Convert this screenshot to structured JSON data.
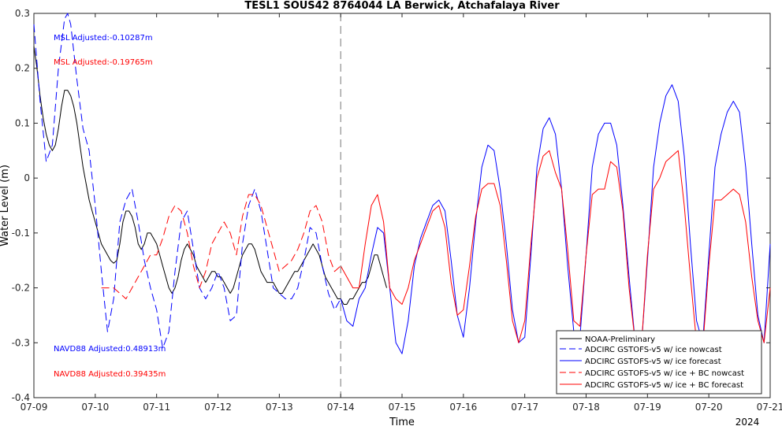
{
  "chart_data": {
    "type": "line",
    "title": "TESL1 SOUS42 8764044 LA Berwick, Atchafalaya River",
    "xlabel": "Time",
    "ylabel": "Water Level (m)",
    "year_label": "2024",
    "x_unit": "day_of_month_july_2024",
    "xlim": [
      9,
      21
    ],
    "ylim": [
      -0.4,
      0.3
    ],
    "xticks": [
      {
        "value": 9,
        "label": "07-09"
      },
      {
        "value": 10,
        "label": "07-10"
      },
      {
        "value": 11,
        "label": "07-11"
      },
      {
        "value": 12,
        "label": "07-12"
      },
      {
        "value": 13,
        "label": "07-13"
      },
      {
        "value": 14,
        "label": "07-14"
      },
      {
        "value": 15,
        "label": "07-15"
      },
      {
        "value": 16,
        "label": "07-16"
      },
      {
        "value": 17,
        "label": "07-17"
      },
      {
        "value": 18,
        "label": "07-18"
      },
      {
        "value": 19,
        "label": "07-19"
      },
      {
        "value": 20,
        "label": "07-20"
      },
      {
        "value": 21,
        "label": "07-21"
      }
    ],
    "yticks": [
      {
        "value": 0.3,
        "label": "0.3"
      },
      {
        "value": 0.2,
        "label": "0.2"
      },
      {
        "value": 0.1,
        "label": "0.1"
      },
      {
        "value": 0,
        "label": "0"
      },
      {
        "value": -0.1,
        "label": "-0.1"
      },
      {
        "value": -0.2,
        "label": "-0.2"
      },
      {
        "value": -0.3,
        "label": "-0.3"
      },
      {
        "value": -0.4,
        "label": "-0.4"
      }
    ],
    "nowcast_forecast_divider_x": 14,
    "grid": false,
    "legend_position": "bottom-right",
    "annotations": [
      {
        "text": "MSL Adjusted:-0.10287m",
        "color": "#0000ff"
      },
      {
        "text": "MSL Adjusted:-0.19765m",
        "color": "#ff0000"
      },
      {
        "text": "NAVD88 Adjusted:0.48913m",
        "color": "#0000ff"
      },
      {
        "text": "NAVD88 Adjusted:0.39435m",
        "color": "#ff0000"
      }
    ],
    "series": [
      {
        "name": "NOAA-Preliminary",
        "color": "#000000",
        "dash": "solid",
        "x": [
          9.0,
          9.05,
          9.1,
          9.15,
          9.2,
          9.25,
          9.3,
          9.35,
          9.4,
          9.45,
          9.5,
          9.55,
          9.6,
          9.65,
          9.7,
          9.75,
          9.8,
          9.85,
          9.9,
          9.95,
          10.0,
          10.05,
          10.1,
          10.15,
          10.2,
          10.25,
          10.3,
          10.35,
          10.4,
          10.45,
          10.5,
          10.55,
          10.6,
          10.65,
          10.7,
          10.75,
          10.8,
          10.85,
          10.9,
          10.95,
          11.0,
          11.05,
          11.1,
          11.15,
          11.2,
          11.25,
          11.3,
          11.35,
          11.4,
          11.45,
          11.5,
          11.55,
          11.6,
          11.65,
          11.7,
          11.75,
          11.8,
          11.85,
          11.9,
          11.95,
          12.0,
          12.05,
          12.1,
          12.15,
          12.2,
          12.25,
          12.3,
          12.35,
          12.4,
          12.45,
          12.5,
          12.55,
          12.6,
          12.65,
          12.7,
          12.75,
          12.8,
          12.85,
          12.9,
          12.95,
          13.0,
          13.05,
          13.1,
          13.15,
          13.2,
          13.25,
          13.3,
          13.35,
          13.4,
          13.45,
          13.5,
          13.55,
          13.6,
          13.65,
          13.7,
          13.75,
          13.8,
          13.85,
          13.9,
          13.95,
          14.0,
          14.05,
          14.1,
          14.15,
          14.2,
          14.25,
          14.3,
          14.35,
          14.4,
          14.45,
          14.5,
          14.55,
          14.6,
          14.65,
          14.7,
          14.75
        ],
        "y": [
          0.24,
          0.2,
          0.15,
          0.11,
          0.08,
          0.06,
          0.05,
          0.06,
          0.09,
          0.13,
          0.16,
          0.16,
          0.15,
          0.13,
          0.1,
          0.06,
          0.02,
          -0.01,
          -0.04,
          -0.06,
          -0.08,
          -0.1,
          -0.12,
          -0.13,
          -0.14,
          -0.15,
          -0.155,
          -0.15,
          -0.12,
          -0.08,
          -0.06,
          -0.06,
          -0.07,
          -0.09,
          -0.12,
          -0.13,
          -0.12,
          -0.1,
          -0.1,
          -0.11,
          -0.12,
          -0.14,
          -0.16,
          -0.18,
          -0.2,
          -0.21,
          -0.2,
          -0.18,
          -0.15,
          -0.13,
          -0.12,
          -0.13,
          -0.14,
          -0.16,
          -0.17,
          -0.18,
          -0.19,
          -0.18,
          -0.17,
          -0.17,
          -0.18,
          -0.18,
          -0.19,
          -0.2,
          -0.21,
          -0.2,
          -0.18,
          -0.16,
          -0.14,
          -0.13,
          -0.12,
          -0.12,
          -0.13,
          -0.15,
          -0.17,
          -0.18,
          -0.19,
          -0.19,
          -0.19,
          -0.2,
          -0.21,
          -0.21,
          -0.2,
          -0.19,
          -0.18,
          -0.17,
          -0.17,
          -0.16,
          -0.15,
          -0.14,
          -0.13,
          -0.12,
          -0.13,
          -0.14,
          -0.16,
          -0.18,
          -0.19,
          -0.2,
          -0.21,
          -0.22,
          -0.22,
          -0.23,
          -0.23,
          -0.22,
          -0.22,
          -0.21,
          -0.2,
          -0.19,
          -0.19,
          -0.18,
          -0.16,
          -0.14,
          -0.14,
          -0.16,
          -0.18,
          -0.2
        ]
      },
      {
        "name": "ADCIRC GSTOFS-v5 w/ ice nowcast",
        "color": "#0000ff",
        "dash": "dashed",
        "x": [
          9.0,
          9.1,
          9.2,
          9.3,
          9.4,
          9.5,
          9.55,
          9.6,
          9.7,
          9.8,
          9.9,
          10.0,
          10.1,
          10.2,
          10.3,
          10.4,
          10.5,
          10.6,
          10.7,
          10.8,
          10.9,
          11.0,
          11.1,
          11.2,
          11.3,
          11.4,
          11.5,
          11.6,
          11.7,
          11.8,
          11.9,
          12.0,
          12.1,
          12.2,
          12.3,
          12.4,
          12.5,
          12.6,
          12.7,
          12.8,
          12.9,
          13.0,
          13.1,
          13.2,
          13.3,
          13.4,
          13.5,
          13.6,
          13.7,
          13.8,
          13.9,
          14.0
        ],
        "y": [
          0.28,
          0.14,
          0.03,
          0.06,
          0.2,
          0.29,
          0.3,
          0.28,
          0.18,
          0.09,
          0.05,
          -0.05,
          -0.17,
          -0.28,
          -0.22,
          -0.08,
          -0.04,
          -0.02,
          -0.08,
          -0.15,
          -0.2,
          -0.24,
          -0.31,
          -0.28,
          -0.17,
          -0.08,
          -0.06,
          -0.13,
          -0.2,
          -0.22,
          -0.2,
          -0.17,
          -0.2,
          -0.26,
          -0.25,
          -0.12,
          -0.05,
          -0.02,
          -0.06,
          -0.13,
          -0.2,
          -0.21,
          -0.22,
          -0.22,
          -0.2,
          -0.15,
          -0.09,
          -0.1,
          -0.16,
          -0.21,
          -0.24,
          -0.22
        ]
      },
      {
        "name": "ADCIRC GSTOFS-v5 w/ ice forecast",
        "color": "#0000ff",
        "dash": "solid",
        "x": [
          14.0,
          14.1,
          14.2,
          14.3,
          14.4,
          14.5,
          14.6,
          14.7,
          14.8,
          14.9,
          15.0,
          15.1,
          15.2,
          15.3,
          15.4,
          15.5,
          15.6,
          15.7,
          15.8,
          15.9,
          16.0,
          16.1,
          16.2,
          16.3,
          16.4,
          16.5,
          16.6,
          16.7,
          16.8,
          16.9,
          17.0,
          17.1,
          17.2,
          17.3,
          17.4,
          17.5,
          17.6,
          17.7,
          17.8,
          17.9,
          18.0,
          18.1,
          18.2,
          18.3,
          18.4,
          18.5,
          18.6,
          18.7,
          18.8,
          18.9,
          19.0,
          19.1,
          19.2,
          19.3,
          19.4,
          19.5,
          19.6,
          19.7,
          19.8,
          19.9,
          20.0,
          20.1,
          20.2,
          20.3,
          20.4,
          20.5,
          20.6,
          20.7,
          20.8,
          20.9,
          21.0
        ],
        "y": [
          -0.22,
          -0.26,
          -0.27,
          -0.22,
          -0.2,
          -0.14,
          -0.09,
          -0.1,
          -0.2,
          -0.3,
          -0.32,
          -0.26,
          -0.16,
          -0.11,
          -0.08,
          -0.05,
          -0.04,
          -0.06,
          -0.15,
          -0.25,
          -0.29,
          -0.2,
          -0.08,
          0.02,
          0.06,
          0.05,
          -0.02,
          -0.12,
          -0.24,
          -0.3,
          -0.29,
          -0.14,
          0.02,
          0.09,
          0.11,
          0.08,
          -0.02,
          -0.16,
          -0.28,
          -0.29,
          -0.14,
          0.02,
          0.08,
          0.1,
          0.1,
          0.06,
          -0.05,
          -0.18,
          -0.3,
          -0.31,
          -0.15,
          0.02,
          0.1,
          0.15,
          0.17,
          0.14,
          0.04,
          -0.12,
          -0.26,
          -0.3,
          -0.14,
          0.02,
          0.08,
          0.12,
          0.14,
          0.12,
          0.02,
          -0.12,
          -0.25,
          -0.3,
          -0.12
        ]
      },
      {
        "name": "ADCIRC GSTOFS-v5 w/ ice + BC nowcast",
        "color": "#ff0000",
        "dash": "dashed",
        "x": [
          10.1,
          10.2,
          10.3,
          10.4,
          10.5,
          10.6,
          10.7,
          10.8,
          10.9,
          11.0,
          11.1,
          11.2,
          11.3,
          11.4,
          11.5,
          11.6,
          11.7,
          11.8,
          11.9,
          12.0,
          12.1,
          12.2,
          12.3,
          12.4,
          12.5,
          12.6,
          12.7,
          12.8,
          12.9,
          13.0,
          13.1,
          13.2,
          13.3,
          13.4,
          13.5,
          13.6,
          13.7,
          13.8,
          13.9,
          14.0
        ],
        "y": [
          -0.2,
          -0.2,
          -0.2,
          -0.21,
          -0.22,
          -0.2,
          -0.18,
          -0.16,
          -0.14,
          -0.14,
          -0.11,
          -0.07,
          -0.05,
          -0.06,
          -0.1,
          -0.16,
          -0.2,
          -0.17,
          -0.12,
          -0.1,
          -0.08,
          -0.1,
          -0.14,
          -0.07,
          -0.03,
          -0.03,
          -0.05,
          -0.09,
          -0.13,
          -0.17,
          -0.16,
          -0.15,
          -0.13,
          -0.1,
          -0.06,
          -0.05,
          -0.08,
          -0.14,
          -0.17,
          -0.16
        ]
      },
      {
        "name": "ADCIRC GSTOFS-v5 w/ ice + BC forecast",
        "color": "#ff0000",
        "dash": "solid",
        "x": [
          14.0,
          14.1,
          14.2,
          14.3,
          14.4,
          14.5,
          14.6,
          14.7,
          14.8,
          14.9,
          15.0,
          15.1,
          15.2,
          15.3,
          15.4,
          15.5,
          15.6,
          15.7,
          15.8,
          15.9,
          16.0,
          16.1,
          16.2,
          16.3,
          16.4,
          16.5,
          16.6,
          16.7,
          16.8,
          16.9,
          17.0,
          17.1,
          17.2,
          17.3,
          17.4,
          17.5,
          17.6,
          17.7,
          17.8,
          17.9,
          18.0,
          18.1,
          18.2,
          18.3,
          18.4,
          18.5,
          18.6,
          18.7,
          18.8,
          18.9,
          19.0,
          19.1,
          19.2,
          19.3,
          19.4,
          19.5,
          19.6,
          19.7,
          19.8,
          19.9,
          20.0,
          20.1,
          20.2,
          20.3,
          20.4,
          20.5,
          20.6,
          20.7,
          20.8,
          20.9,
          21.0
        ],
        "y": [
          -0.16,
          -0.18,
          -0.2,
          -0.2,
          -0.12,
          -0.05,
          -0.03,
          -0.08,
          -0.2,
          -0.22,
          -0.23,
          -0.2,
          -0.15,
          -0.12,
          -0.09,
          -0.06,
          -0.05,
          -0.09,
          -0.19,
          -0.25,
          -0.24,
          -0.16,
          -0.07,
          -0.02,
          -0.01,
          -0.01,
          -0.05,
          -0.15,
          -0.26,
          -0.3,
          -0.26,
          -0.12,
          0.0,
          0.04,
          0.05,
          0.01,
          -0.02,
          -0.13,
          -0.26,
          -0.27,
          -0.14,
          -0.03,
          -0.02,
          -0.02,
          0.03,
          0.02,
          -0.06,
          -0.2,
          -0.3,
          -0.31,
          -0.14,
          -0.02,
          0.0,
          0.03,
          0.04,
          0.05,
          -0.05,
          -0.18,
          -0.3,
          -0.31,
          -0.16,
          -0.04,
          -0.04,
          -0.03,
          -0.02,
          -0.03,
          -0.08,
          -0.18,
          -0.26,
          -0.3,
          -0.2
        ]
      }
    ]
  }
}
